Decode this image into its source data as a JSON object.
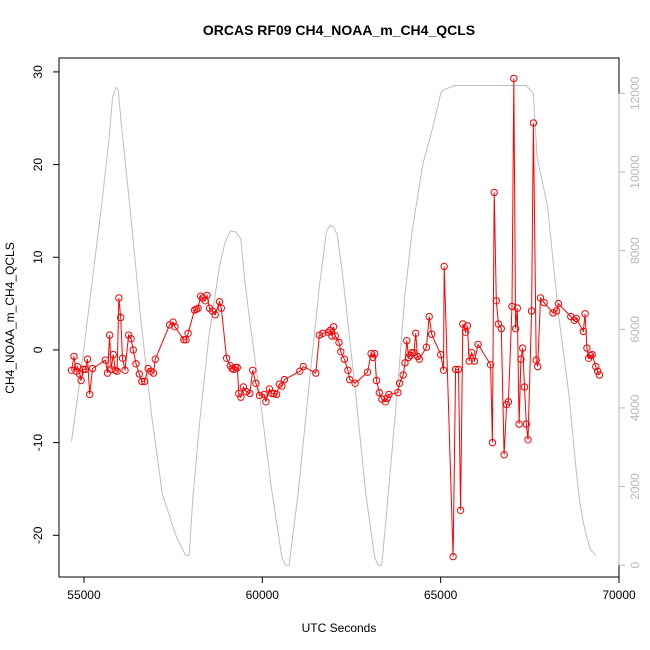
{
  "chart_data": {
    "type": "line",
    "title": "ORCAS RF09 CH4_NOAA_m_CH4_QCLS",
    "xlabel": "UTC Seconds",
    "ylabel": "CH4_NOAA_m_CH4_QCLS",
    "xlim": [
      54300,
      70000
    ],
    "ylim": [
      -24.5,
      31.5
    ],
    "y2lim": [
      -300,
      12900
    ],
    "x_ticks": [
      55000,
      60000,
      65000,
      70000
    ],
    "y_ticks": [
      -20,
      -10,
      0,
      10,
      20,
      30
    ],
    "y2_ticks": [
      0,
      2000,
      4000,
      6000,
      8000,
      10000,
      12000
    ],
    "grid": false,
    "series": [
      {
        "axis": "left",
        "color": "#ff0000",
        "style": "line+points",
        "x": [
          54650,
          54720,
          54780,
          54820,
          54880,
          54920,
          54980,
          55040,
          55100,
          55160,
          55240,
          55600,
          55660,
          55720,
          55760,
          55820,
          55880,
          55930,
          55980,
          56030,
          56080,
          56150,
          56250,
          56320,
          56380,
          56460,
          56550,
          56620,
          56700,
          56800,
          56880,
          56950,
          57000,
          57400,
          57500,
          57550,
          57800,
          57860,
          57920,
          58100,
          58150,
          58200,
          58270,
          58330,
          58400,
          58450,
          58520,
          58600,
          58680,
          58800,
          58850,
          59000,
          59100,
          59150,
          59200,
          59250,
          59300,
          59340,
          59400,
          59470,
          59550,
          59650,
          59730,
          59820,
          59920,
          60050,
          60100,
          60200,
          60270,
          60330,
          60400,
          60480,
          60550,
          60620,
          61050,
          61150,
          61500,
          61600,
          61700,
          61850,
          61900,
          61950,
          62000,
          62050,
          62150,
          62200,
          62300,
          62400,
          62450,
          62600,
          62950,
          63050,
          63100,
          63150,
          63200,
          63280,
          63350,
          63450,
          63500,
          63550,
          63800,
          63850,
          63950,
          64000,
          64050,
          64100,
          64150,
          64200,
          64250,
          64300,
          64350,
          64400,
          64600,
          64680,
          64750,
          65000,
          65080,
          65100,
          65350,
          65420,
          65500,
          65560,
          65620,
          65700,
          65750,
          65800,
          65870,
          65950,
          66050,
          66400,
          66450,
          66500,
          66560,
          66620,
          66700,
          66780,
          66850,
          66900,
          67000,
          67050,
          67100,
          67150,
          67200,
          67250,
          67300,
          67350,
          67400,
          67450,
          67550,
          67600,
          67680,
          67720,
          67800,
          67900,
          68150,
          68250,
          68300,
          68650,
          68750,
          68800,
          69000,
          69050,
          69100,
          69150,
          69200,
          69250,
          69350,
          69400,
          69450
        ],
        "y": [
          -2.2,
          -0.7,
          -2.3,
          -1.8,
          -2.6,
          -3.3,
          -2.1,
          -2.1,
          -1.0,
          -4.8,
          -2.0,
          -1.1,
          -2.5,
          1.6,
          -2.1,
          -0.5,
          -2.2,
          -2.3,
          5.6,
          3.5,
          -0.9,
          -2.2,
          1.6,
          1.2,
          0.0,
          -1.5,
          -2.6,
          -3.4,
          -3.4,
          -2.0,
          -2.3,
          -2.5,
          -1.0,
          2.7,
          3.0,
          2.5,
          1.1,
          1.1,
          1.8,
          4.3,
          4.4,
          4.5,
          5.8,
          5.6,
          5.3,
          5.9,
          4.5,
          4.2,
          3.8,
          5.2,
          4.5,
          -0.9,
          -1.7,
          -2.0,
          -2.1,
          -1.9,
          -1.9,
          -4.7,
          -5.1,
          -4.0,
          -4.5,
          -4.7,
          -2.2,
          -3.6,
          -4.9,
          -4.8,
          -5.6,
          -4.2,
          -4.7,
          -4.7,
          -4.8,
          -3.7,
          -3.9,
          -3.2,
          -2.3,
          -1.8,
          -2.5,
          1.6,
          1.8,
          1.9,
          2.1,
          1.5,
          2.5,
          1.5,
          0.8,
          -0.2,
          -1.0,
          -2.2,
          -3.2,
          -3.6,
          -2.4,
          -0.4,
          -0.8,
          -0.4,
          -3.3,
          -4.6,
          -5.3,
          -5.6,
          -5.2,
          -4.8,
          -4.6,
          -3.6,
          -2.7,
          -1.4,
          1.0,
          -0.8,
          -0.6,
          -0.3,
          -0.3,
          1.8,
          -0.7,
          -1.0,
          0.3,
          3.6,
          1.7,
          -0.5,
          -2.2,
          9.0,
          -22.3,
          -2.1,
          -2.1,
          -17.3,
          2.8,
          1.9,
          2.6,
          -1.2,
          -0.3,
          -1.2,
          0.6,
          -1.6,
          -10.0,
          17.0,
          5.3,
          2.8,
          2.3,
          -11.3,
          -5.9,
          -5.6,
          4.7,
          29.3,
          2.3,
          4.5,
          -8.0,
          -1.0,
          0.2,
          -4.0,
          -8.0,
          -9.7,
          4.2,
          24.5,
          -1.1,
          -1.8,
          5.6,
          5.1,
          4.0,
          4.2,
          5.0,
          3.6,
          3.2,
          3.4,
          2.0,
          3.9,
          0.2,
          -0.9,
          -0.6,
          -0.5,
          -1.8,
          -2.3,
          -2.7
        ]
      },
      {
        "axis": "right",
        "color": "#bebebe",
        "style": "line",
        "x": [
          54650,
          54900,
          55200,
          55500,
          55700,
          55800,
          55900,
          55960,
          56050,
          56300,
          56600,
          56900,
          57200,
          57600,
          57850,
          57950,
          58050,
          58250,
          58500,
          58800,
          58950,
          59100,
          59250,
          59400,
          59500,
          59650,
          59800,
          60000,
          60250,
          60550,
          60650,
          60750,
          61000,
          61300,
          61600,
          61800,
          61900,
          62000,
          62100,
          62250,
          62600,
          62900,
          63150,
          63250,
          63350,
          63550,
          63800,
          64000,
          64200,
          64500,
          64800,
          65000,
          65100,
          65400,
          66000,
          66500,
          67000,
          67400,
          67600,
          67700,
          68000,
          68300,
          68600,
          68800,
          68900,
          69000,
          69100,
          69200,
          69300,
          69350
        ],
        "y": [
          3150,
          4800,
          7000,
          9200,
          10800,
          11900,
          12150,
          12100,
          11200,
          9000,
          6200,
          3800,
          1800,
          700,
          250,
          250,
          1700,
          3700,
          5800,
          7600,
          8200,
          8500,
          8480,
          8300,
          7300,
          6200,
          5200,
          3800,
          2000,
          200,
          0,
          0,
          1800,
          4500,
          7100,
          8500,
          8650,
          8600,
          8400,
          7400,
          4500,
          1800,
          200,
          0,
          0,
          2000,
          4600,
          6900,
          8500,
          10200,
          11200,
          12000,
          12100,
          12200,
          12200,
          12200,
          12200,
          12200,
          12000,
          10400,
          9100,
          6400,
          4300,
          2400,
          1600,
          1100,
          700,
          400,
          300,
          250
        ]
      }
    ]
  }
}
